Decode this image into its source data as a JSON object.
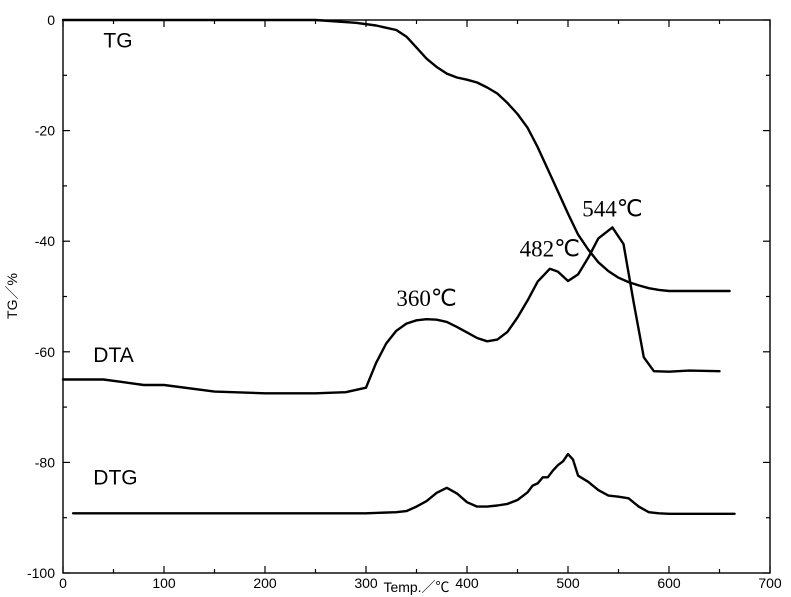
{
  "chart_data": {
    "type": "line",
    "title": "",
    "xlabel": "Temp.／℃",
    "ylabel": "TG／%",
    "xlim": [
      0,
      700
    ],
    "ylim": [
      -100,
      0
    ],
    "xticks": [
      "0",
      "100",
      "200",
      "300",
      "400",
      "500",
      "600",
      "700"
    ],
    "yticks": [
      "0",
      "-20",
      "-40",
      "-60",
      "-80",
      "-100"
    ],
    "grid": false,
    "series": [
      {
        "name": "TG",
        "label_at": [
          40,
          -5
        ],
        "x": [
          0,
          100,
          200,
          250,
          290,
          310,
          330,
          340,
          350,
          360,
          370,
          380,
          390,
          400,
          410,
          420,
          430,
          440,
          450,
          460,
          470,
          480,
          490,
          500,
          510,
          520,
          530,
          540,
          550,
          560,
          570,
          580,
          590,
          600,
          620,
          640,
          660
        ],
        "y": [
          0,
          0,
          0,
          0,
          -0.5,
          -1,
          -1.8,
          -3,
          -5,
          -7,
          -8.5,
          -9.7,
          -10.4,
          -10.8,
          -11.3,
          -12.2,
          -13.3,
          -15,
          -17,
          -19.5,
          -23,
          -27,
          -31,
          -35,
          -38.8,
          -41.5,
          -43.8,
          -45.4,
          -46.6,
          -47.4,
          -48,
          -48.5,
          -48.8,
          -49,
          -49,
          -49,
          -49
        ]
      },
      {
        "name": "DTA",
        "label_at": [
          30,
          -61.8
        ],
        "x": [
          0,
          40,
          60,
          80,
          100,
          150,
          200,
          250,
          280,
          300,
          310,
          320,
          330,
          340,
          350,
          360,
          370,
          380,
          390,
          400,
          410,
          420,
          430,
          440,
          450,
          460,
          470,
          482,
          490,
          500,
          510,
          520,
          530,
          544,
          555,
          565,
          575,
          585,
          600,
          620,
          650
        ],
        "y": [
          -65,
          -65,
          -65.5,
          -66,
          -66,
          -67.2,
          -67.5,
          -67.5,
          -67.3,
          -66.5,
          -62,
          -58.5,
          -56.2,
          -54.9,
          -54.3,
          -54.1,
          -54.2,
          -54.6,
          -55.5,
          -56.5,
          -57.5,
          -58.1,
          -57.8,
          -56.4,
          -53.8,
          -50.7,
          -47.3,
          -45,
          -45.5,
          -47.2,
          -46,
          -43,
          -39.5,
          -37.5,
          -40.5,
          -51,
          -61,
          -63.5,
          -63.6,
          -63.4,
          -63.5
        ]
      },
      {
        "name": "DTG",
        "label_at": [
          30,
          -84
        ],
        "x": [
          10,
          100,
          200,
          300,
          330,
          340,
          350,
          360,
          370,
          380,
          390,
          400,
          410,
          420,
          430,
          440,
          450,
          460,
          465,
          470,
          475,
          480,
          485,
          490,
          495,
          500,
          505,
          510,
          520,
          530,
          540,
          550,
          560,
          570,
          580,
          590,
          600,
          640,
          665
        ],
        "y": [
          -89.2,
          -89.2,
          -89.2,
          -89.2,
          -89,
          -88.8,
          -88,
          -87,
          -85.5,
          -84.6,
          -85.6,
          -87.2,
          -88,
          -88,
          -87.8,
          -87.5,
          -86.8,
          -85.4,
          -84.2,
          -83.8,
          -82.7,
          -82.7,
          -81.5,
          -80.5,
          -79.8,
          -78.5,
          -79.5,
          -82.4,
          -83.5,
          -85,
          -86,
          -86.2,
          -86.5,
          -88,
          -89,
          -89.2,
          -89.3,
          -89.3,
          -89.3
        ]
      }
    ],
    "annotations": [
      {
        "text": "360℃",
        "x": 360,
        "y": -51.7
      },
      {
        "text": "482℃",
        "x": 482,
        "y": -42.8
      },
      {
        "text": "544℃",
        "x": 544,
        "y": -35.5
      }
    ]
  }
}
